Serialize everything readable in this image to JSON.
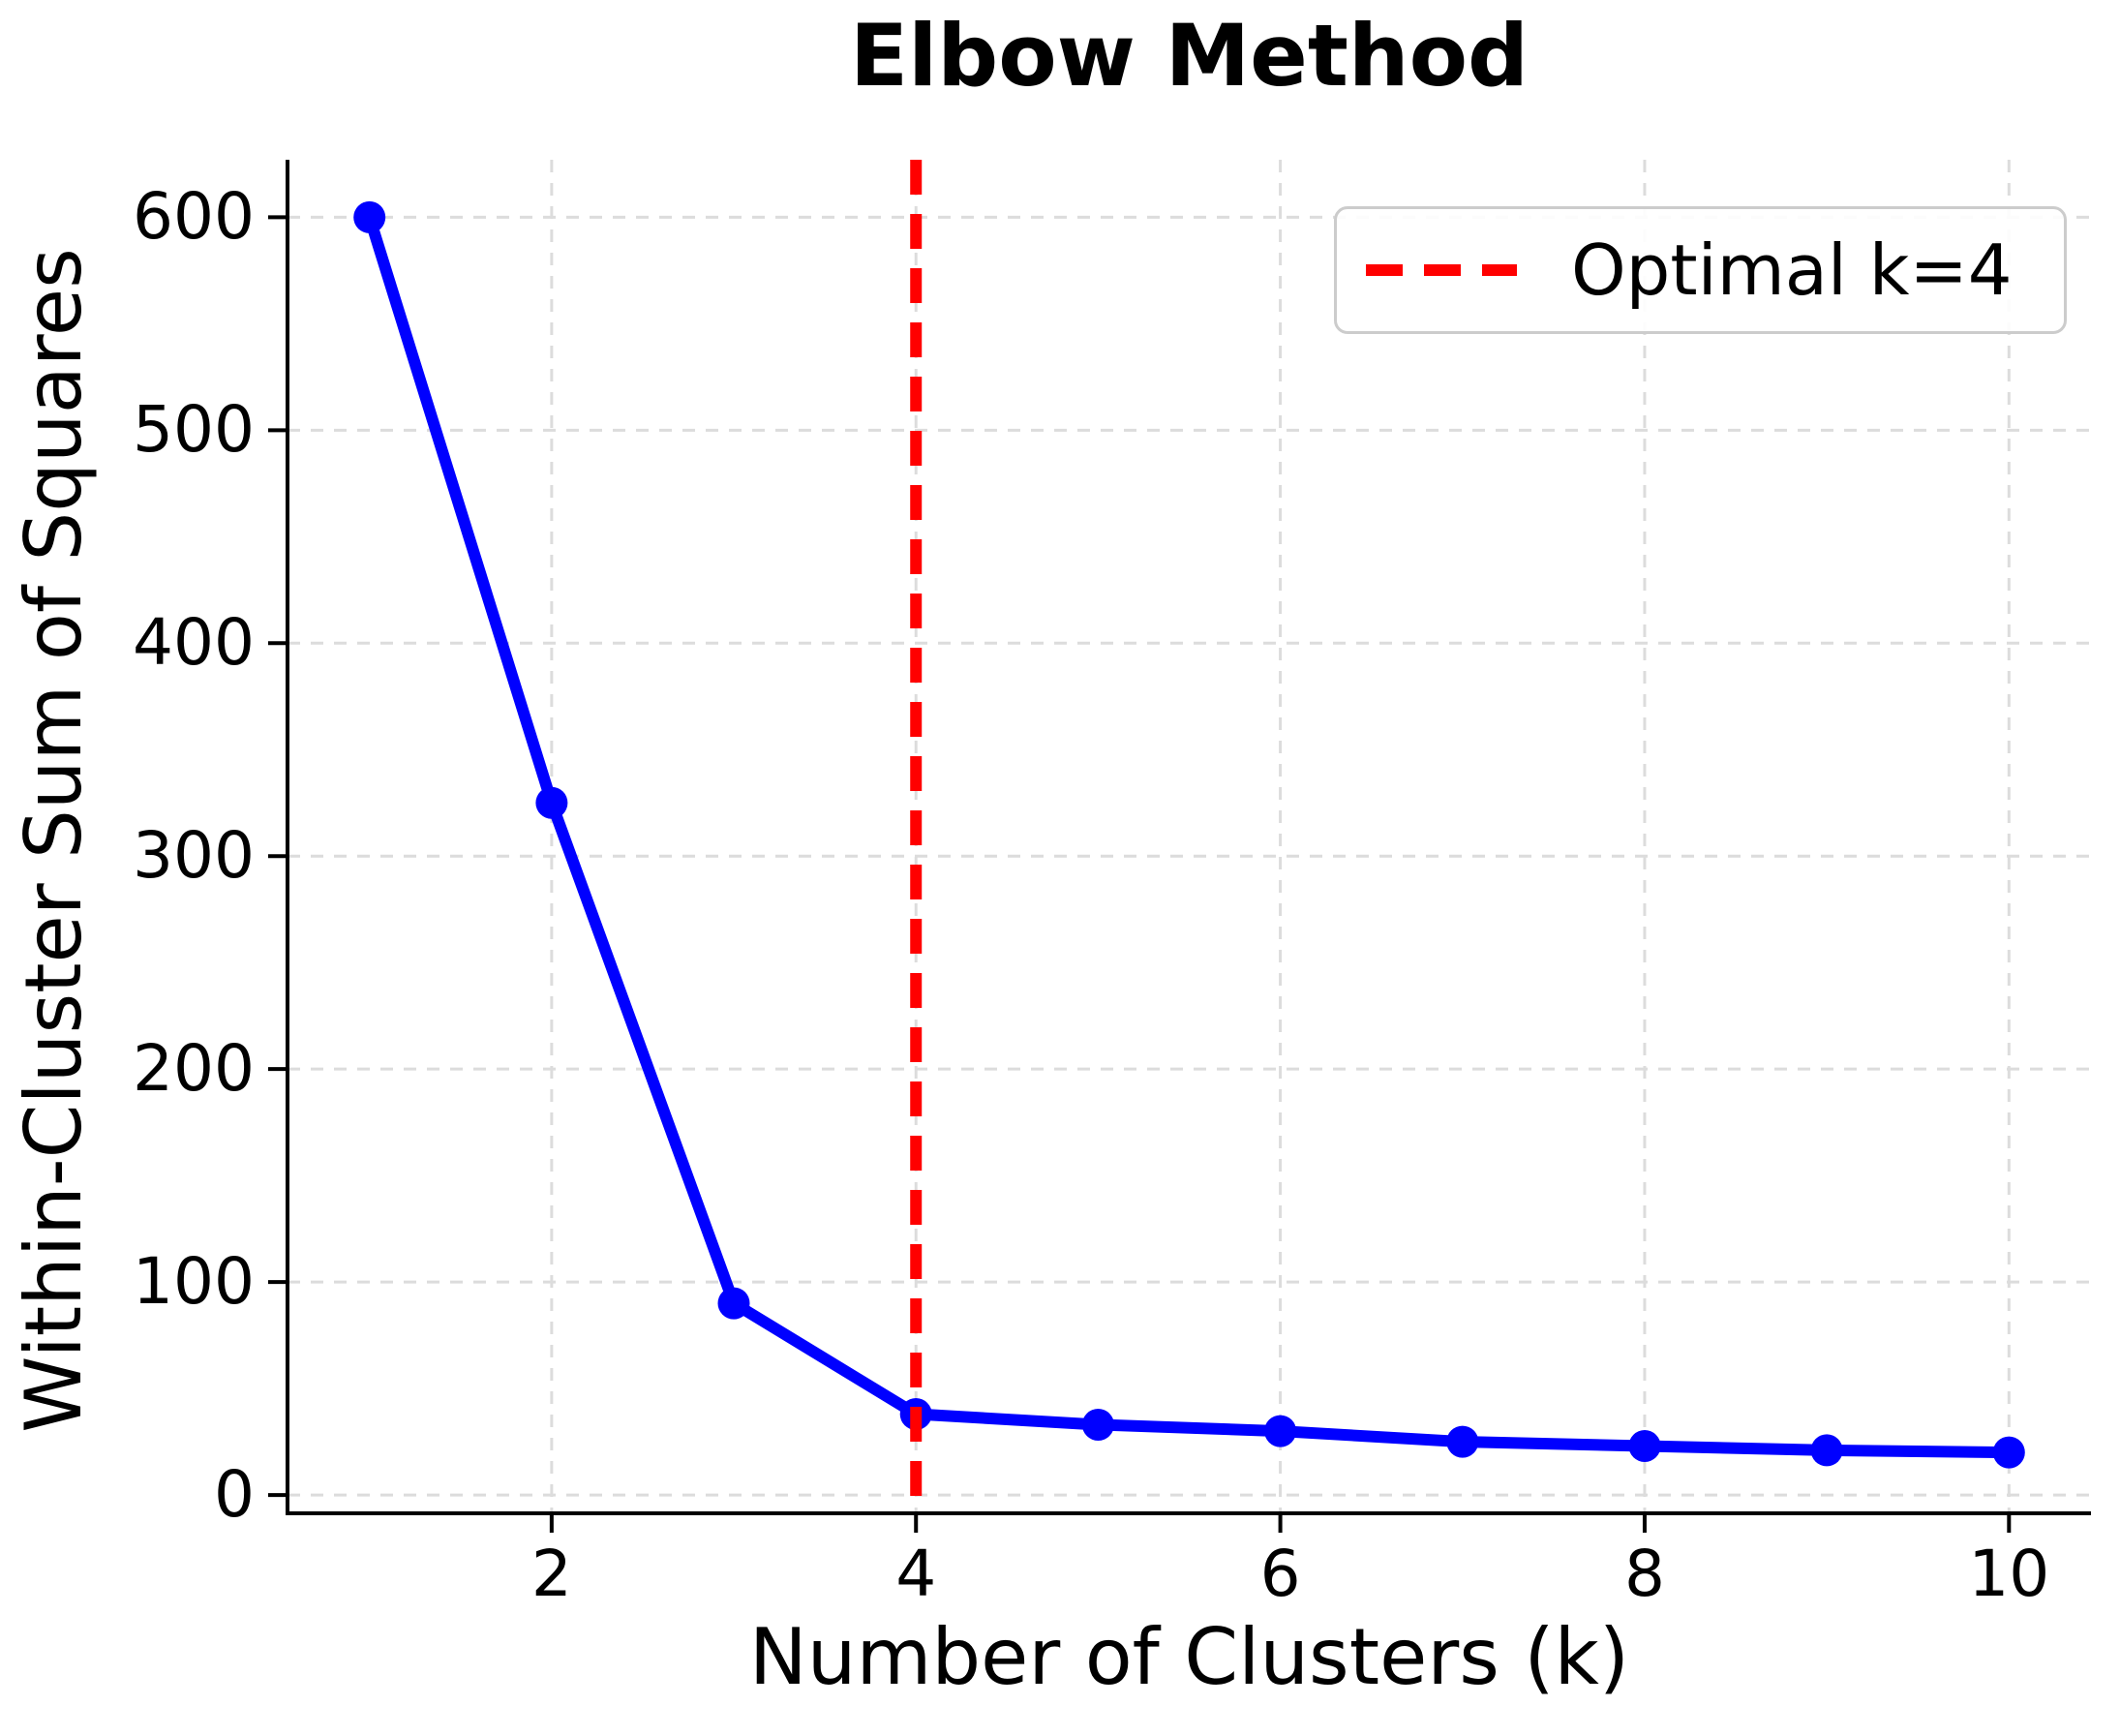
{
  "figure": {
    "background": "#ffffff",
    "text_color": "#000000",
    "grid_color": "#dcdcdc",
    "spine_color": "#000000"
  },
  "chart_data": {
    "type": "line",
    "title": "Elbow Method",
    "xlabel": "Number of Clusters (k)",
    "ylabel": "Within-Cluster Sum of Squares",
    "x": [
      1,
      2,
      3,
      4,
      5,
      6,
      7,
      8,
      9,
      10
    ],
    "series": [
      {
        "name": "Within-Cluster Sum of Squares",
        "color": "#0000ff",
        "marker": "circle",
        "line_style": "solid",
        "values": [
          600,
          325,
          90,
          38,
          33,
          30,
          25,
          23,
          21,
          20
        ]
      }
    ],
    "x_ticks": [
      2,
      4,
      6,
      8,
      10
    ],
    "y_ticks": [
      0,
      100,
      200,
      300,
      400,
      500,
      600
    ],
    "xlim": [
      0.55,
      10.45
    ],
    "ylim": [
      -8.6,
      627
    ],
    "grid": true,
    "grid_style": "dashed",
    "annotations": [
      {
        "type": "vline",
        "x": 4,
        "color": "#ff0000",
        "style": "dashed",
        "label": "Optimal k=4"
      }
    ],
    "legend": {
      "position": "upper right",
      "entries": [
        {
          "label": "Optimal k=4",
          "color": "#ff0000",
          "style": "dashed"
        }
      ]
    }
  }
}
